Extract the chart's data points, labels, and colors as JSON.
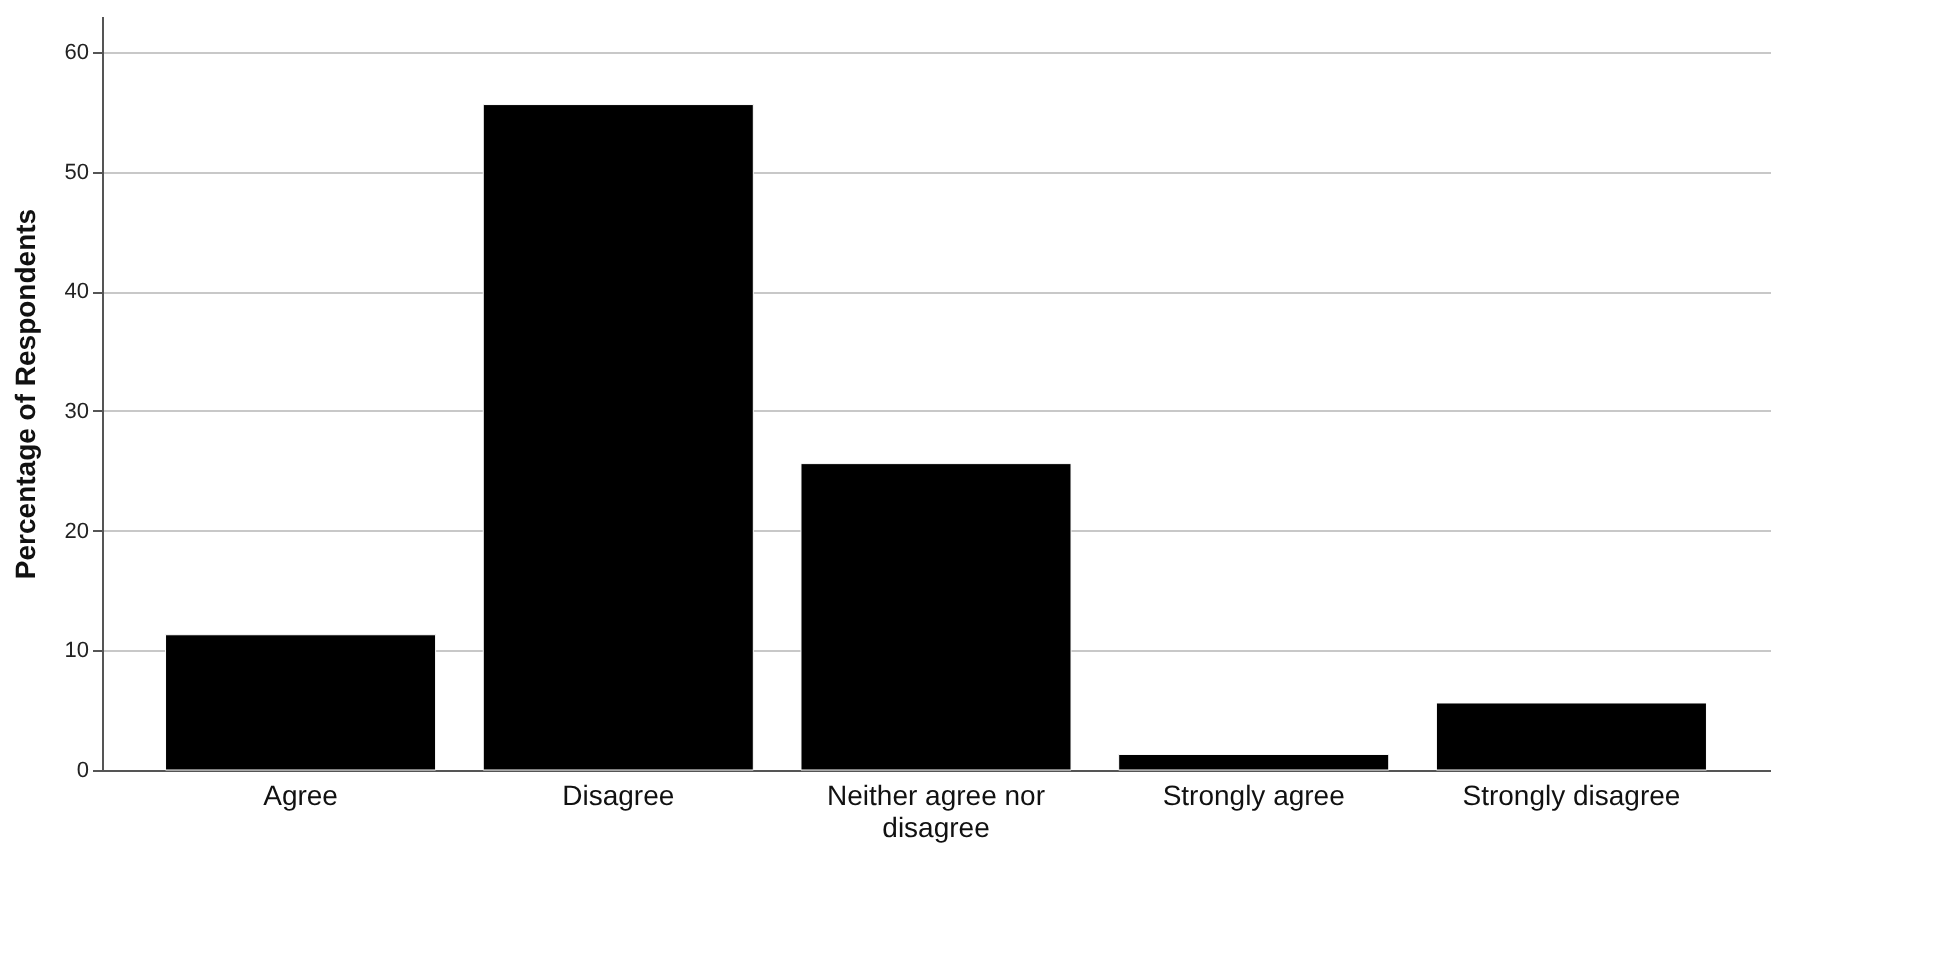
{
  "chart_data": {
    "type": "bar",
    "ylabel": "Percentage of Respondents",
    "categories": [
      "Agree",
      "Disagree",
      "Neither agree nor disagree",
      "Strongly agree",
      "Strongly disagree"
    ],
    "values": [
      11.3,
      55.6,
      25.6,
      1.3,
      5.6
    ],
    "color": "#000000",
    "ylim": [
      0,
      63
    ],
    "yticks": [
      0,
      10,
      20,
      30,
      40,
      50,
      60
    ],
    "grid": "y"
  }
}
